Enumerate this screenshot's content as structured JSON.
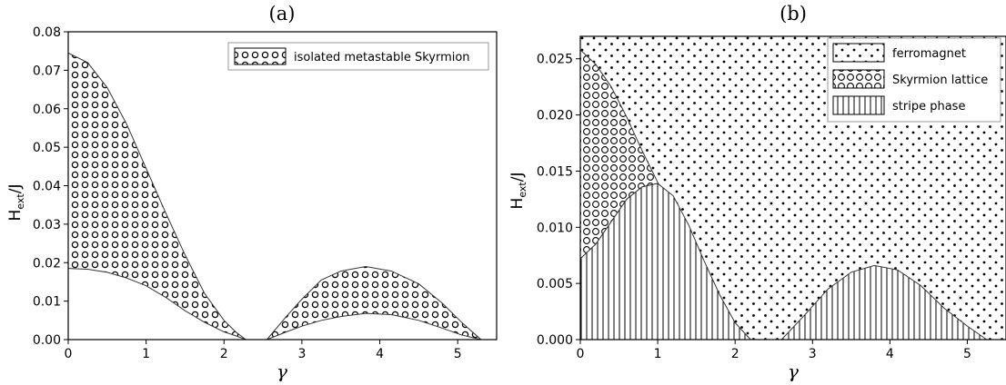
{
  "chart_data": [
    {
      "type": "area",
      "title": "(a)",
      "xlabel": "γ",
      "ylabel": "H_ext/J",
      "xlim": [
        0,
        5.5
      ],
      "ylim": [
        0,
        0.08
      ],
      "xticks": [
        0,
        1,
        2,
        3,
        4,
        5
      ],
      "yticks": [
        0.0,
        0.01,
        0.02,
        0.03,
        0.04,
        0.05,
        0.06,
        0.07,
        0.08
      ],
      "ytick_labels": [
        "0.00",
        "0.01",
        "0.02",
        "0.03",
        "0.04",
        "0.05",
        "0.06",
        "0.07",
        "0.08"
      ],
      "xtick_labels": [
        "0",
        "1",
        "2",
        "3",
        "4",
        "5"
      ],
      "grid": false,
      "legend_position": "top-right",
      "series": [
        {
          "name": "isolated metastable Skyrmion",
          "pattern": "circles",
          "regions": [
            {
              "x": [
                0,
                0.25,
                0.5,
                0.75,
                1.0,
                1.25,
                1.5,
                1.75,
                2.0,
                2.15,
                2.28
              ],
              "upper": [
                0.0745,
                0.072,
                0.0655,
                0.056,
                0.0445,
                0.033,
                0.022,
                0.012,
                0.005,
                0.002,
                0.0
              ],
              "lower": [
                0.0185,
                0.0183,
                0.0175,
                0.016,
                0.014,
                0.011,
                0.0075,
                0.0045,
                0.002,
                0.001,
                0.0
              ]
            },
            {
              "x": [
                2.55,
                2.8,
                3.0,
                3.25,
                3.5,
                3.82,
                4.15,
                4.5,
                4.8,
                5.05,
                5.3
              ],
              "upper": [
                0.0,
                0.006,
                0.0105,
                0.0155,
                0.0178,
                0.019,
                0.0178,
                0.0145,
                0.0095,
                0.0045,
                0.0
              ],
              "lower": [
                0.0,
                0.002,
                0.0035,
                0.005,
                0.006,
                0.0068,
                0.0065,
                0.005,
                0.003,
                0.0012,
                0.0
              ]
            }
          ]
        }
      ]
    },
    {
      "type": "area",
      "title": "(b)",
      "xlabel": "γ",
      "ylabel": "H_ext/J",
      "xlim": [
        0,
        5.5
      ],
      "ylim": [
        0,
        0.027
      ],
      "xticks": [
        0,
        1,
        2,
        3,
        4,
        5
      ],
      "yticks": [
        0.0,
        0.005,
        0.01,
        0.015,
        0.02,
        0.025
      ],
      "ytick_labels": [
        "0.000",
        "0.005",
        "0.010",
        "0.015",
        "0.020",
        "0.025"
      ],
      "xtick_labels": [
        "0",
        "1",
        "2",
        "3",
        "4",
        "5"
      ],
      "grid": false,
      "legend_position": "top-right",
      "series": [
        {
          "name": "ferromagnet",
          "pattern": "dots"
        },
        {
          "name": "Skyrmion lattice",
          "pattern": "circles",
          "x": [
            0,
            0.2,
            0.4,
            0.6,
            0.8,
            1.0,
            1.1
          ],
          "upper": [
            0.0258,
            0.0245,
            0.0225,
            0.0198,
            0.0168,
            0.014,
            0.0128
          ],
          "lower": [
            0.0072,
            0.0085,
            0.0105,
            0.0125,
            0.0136,
            0.0139,
            0.0128
          ]
        },
        {
          "name": "stripe phase",
          "pattern": "vertical-lines",
          "regions": [
            {
              "x": [
                0,
                0.2,
                0.4,
                0.6,
                0.8,
                1.0,
                1.2,
                1.4,
                1.6,
                1.8,
                2.0,
                2.2
              ],
              "upper": [
                0.0072,
                0.0085,
                0.0105,
                0.0125,
                0.0136,
                0.0139,
                0.0128,
                0.0102,
                0.007,
                0.004,
                0.0015,
                0.0
              ]
            },
            {
              "x": [
                2.6,
                2.9,
                3.2,
                3.5,
                3.8,
                4.1,
                4.4,
                4.7,
                5.0,
                5.25
              ],
              "upper": [
                0.0,
                0.0022,
                0.0045,
                0.006,
                0.0066,
                0.0062,
                0.0048,
                0.0028,
                0.0012,
                0.0
              ]
            }
          ]
        }
      ]
    }
  ]
}
